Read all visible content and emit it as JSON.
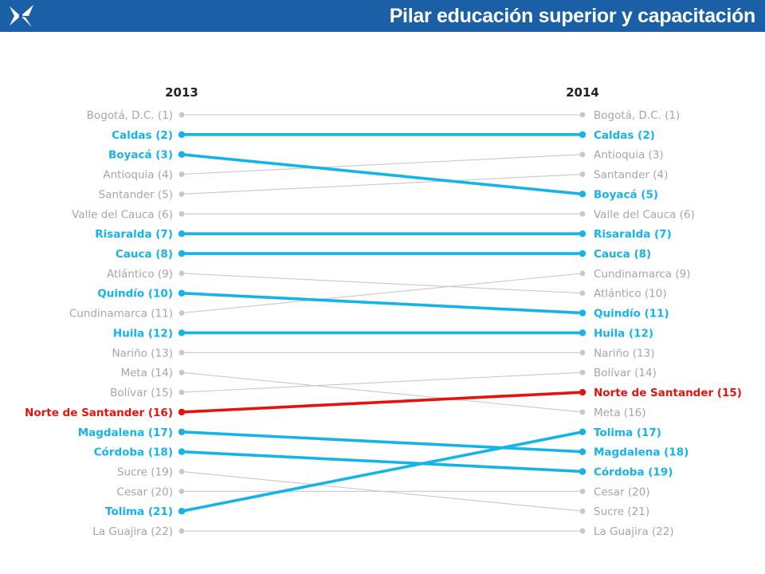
{
  "header": {
    "title": "Pilar educación superior y capacitación",
    "logo_icon": "star-burst-logo-icon"
  },
  "colors": {
    "header_bg": "#1b5fa7",
    "grey": "#c8c8c8",
    "grey_text": "#a6a6a6",
    "blue": "#14b4ea",
    "red": "#e8120c"
  },
  "chart_data": {
    "type": "slope",
    "title": "Pilar educación superior y capacitación",
    "periods": [
      "2013",
      "2014"
    ],
    "series": [
      {
        "name": "Bogotá, D.C.",
        "values": [
          1,
          1
        ],
        "highlight": "grey"
      },
      {
        "name": "Caldas",
        "values": [
          2,
          2
        ],
        "highlight": "blue"
      },
      {
        "name": "Boyacá",
        "values": [
          3,
          5
        ],
        "highlight": "blue"
      },
      {
        "name": "Antioquia",
        "values": [
          4,
          3
        ],
        "highlight": "grey"
      },
      {
        "name": "Santander",
        "values": [
          5,
          4
        ],
        "highlight": "grey"
      },
      {
        "name": "Valle del Cauca",
        "values": [
          6,
          6
        ],
        "highlight": "grey"
      },
      {
        "name": "Risaralda",
        "values": [
          7,
          7
        ],
        "highlight": "blue"
      },
      {
        "name": "Cauca",
        "values": [
          8,
          8
        ],
        "highlight": "blue"
      },
      {
        "name": "Atlántico",
        "values": [
          9,
          10
        ],
        "highlight": "grey"
      },
      {
        "name": "Quindío",
        "values": [
          10,
          11
        ],
        "highlight": "blue"
      },
      {
        "name": "Cundinamarca",
        "values": [
          11,
          9
        ],
        "highlight": "grey"
      },
      {
        "name": "Huila",
        "values": [
          12,
          12
        ],
        "highlight": "blue"
      },
      {
        "name": "Nariño",
        "values": [
          13,
          13
        ],
        "highlight": "grey"
      },
      {
        "name": "Meta",
        "values": [
          14,
          16
        ],
        "highlight": "grey"
      },
      {
        "name": "Bolívar",
        "values": [
          15,
          14
        ],
        "highlight": "grey"
      },
      {
        "name": "Norte de Santander",
        "values": [
          16,
          15
        ],
        "highlight": "red"
      },
      {
        "name": "Magdalena",
        "values": [
          17,
          18
        ],
        "highlight": "blue"
      },
      {
        "name": "Córdoba",
        "values": [
          18,
          19
        ],
        "highlight": "blue"
      },
      {
        "name": "Sucre",
        "values": [
          19,
          21
        ],
        "highlight": "grey"
      },
      {
        "name": "Cesar",
        "values": [
          20,
          20
        ],
        "highlight": "grey"
      },
      {
        "name": "Tolima",
        "values": [
          21,
          17
        ],
        "highlight": "blue"
      },
      {
        "name": "La Guajira",
        "values": [
          22,
          22
        ],
        "highlight": "grey"
      }
    ]
  }
}
